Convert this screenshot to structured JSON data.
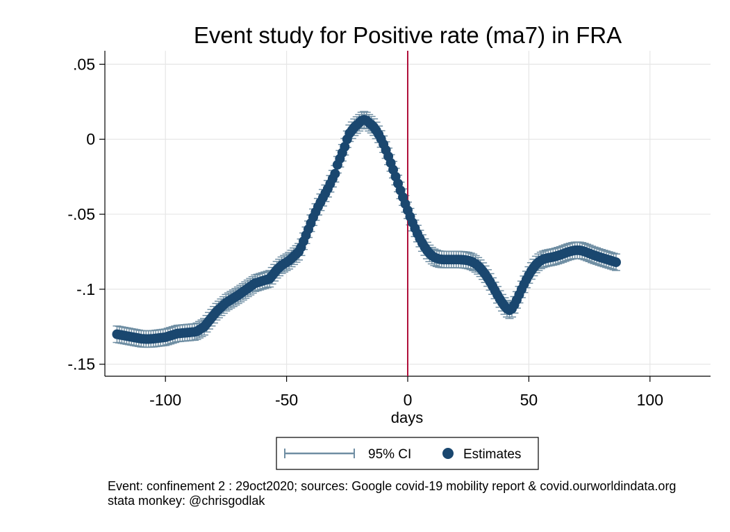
{
  "chart_data": {
    "type": "scatter",
    "title": "Event study for Positive rate (ma7) in FRA",
    "xlabel": "days",
    "ylabel": "",
    "xlim": [
      -125,
      125
    ],
    "ylim": [
      -0.158,
      0.059
    ],
    "x_ticks": [
      -100,
      -50,
      0,
      50,
      100
    ],
    "x_tick_labels": [
      "-100",
      "-50",
      "0",
      "50",
      "100"
    ],
    "y_ticks": [
      0.05,
      0,
      -0.05,
      -0.1,
      -0.15
    ],
    "y_tick_labels": [
      ".05",
      "0",
      "-.05",
      "-.1",
      "-.15"
    ],
    "grid": true,
    "event_line_x": 0,
    "event_line_color": "#b0103a",
    "ci_half_width": 0.0055,
    "legend": {
      "position": "bottom",
      "entries": [
        {
          "label": "95% CI",
          "kind": "ci",
          "color": "#6f8ea3"
        },
        {
          "label": "Estimates",
          "kind": "marker",
          "color": "#1a476f"
        }
      ]
    },
    "series": [
      {
        "name": "Estimates",
        "color": "#1a476f",
        "x_start": -120,
        "x_step": 1,
        "values": [
          -0.13,
          -0.1303,
          -0.1306,
          -0.1309,
          -0.1312,
          -0.1315,
          -0.1318,
          -0.1321,
          -0.1324,
          -0.1327,
          -0.133,
          -0.1331,
          -0.1332,
          -0.1332,
          -0.1331,
          -0.133,
          -0.1328,
          -0.1326,
          -0.1324,
          -0.1322,
          -0.132,
          -0.1315,
          -0.131,
          -0.1305,
          -0.13,
          -0.1295,
          -0.1294,
          -0.1292,
          -0.1291,
          -0.1289,
          -0.1288,
          -0.1286,
          -0.1285,
          -0.128,
          -0.127,
          -0.126,
          -0.125,
          -0.123,
          -0.121,
          -0.119,
          -0.117,
          -0.115,
          -0.1135,
          -0.112,
          -0.1105,
          -0.109,
          -0.108,
          -0.107,
          -0.106,
          -0.105,
          -0.104,
          -0.1029,
          -0.1017,
          -0.1006,
          -0.0994,
          -0.0983,
          -0.0971,
          -0.096,
          -0.0955,
          -0.095,
          -0.0945,
          -0.094,
          -0.0935,
          -0.093,
          -0.091,
          -0.089,
          -0.087,
          -0.0855,
          -0.084,
          -0.083,
          -0.082,
          -0.081,
          -0.0795,
          -0.078,
          -0.0765,
          -0.075,
          -0.072,
          -0.068,
          -0.064,
          -0.06,
          -0.056,
          -0.052,
          -0.0485,
          -0.045,
          -0.042,
          -0.039,
          -0.036,
          -0.033,
          -0.0297,
          -0.0263,
          -0.023,
          -0.017,
          -0.013,
          -0.009,
          -0.005,
          0,
          0.004,
          0.006,
          0.008,
          0.0095,
          0.011,
          0.0125,
          0.013,
          0.0125,
          0.011,
          0.0097,
          0.0081,
          0.0059,
          0.0033,
          0.0002,
          -0.0033,
          -0.0072,
          -0.0114,
          -0.0158,
          -0.0203,
          -0.0249,
          -0.0295,
          -0.0341,
          -0.0386,
          -0.0431,
          -0.0474,
          -0.0516,
          -0.0556,
          -0.0594,
          -0.0629,
          -0.0662,
          -0.0692,
          -0.0719,
          -0.0742,
          -0.0761,
          -0.0776,
          -0.0787,
          -0.0794,
          -0.0799,
          -0.0801,
          -0.0802,
          -0.0802,
          -0.0802,
          -0.0802,
          -0.0802,
          -0.0802,
          -0.0802,
          -0.0803,
          -0.0804,
          -0.0806,
          -0.0809,
          -0.0814,
          -0.0821,
          -0.0831,
          -0.0844,
          -0.086,
          -0.0879,
          -0.09,
          -0.0925,
          -0.0951,
          -0.0979,
          -0.1008,
          -0.1037,
          -0.1065,
          -0.109,
          -0.1112,
          -0.113,
          -0.114,
          -0.113,
          -0.1104,
          -0.1071,
          -0.1036,
          -0.1001,
          -0.0967,
          -0.0935,
          -0.0905,
          -0.0878,
          -0.0855,
          -0.0835,
          -0.082,
          -0.0808,
          -0.08,
          -0.0795,
          -0.0791,
          -0.0788,
          -0.0785,
          -0.0781,
          -0.0776,
          -0.0771,
          -0.0765,
          -0.0759,
          -0.0753,
          -0.0748,
          -0.0744,
          -0.0741,
          -0.074,
          -0.0741,
          -0.0744,
          -0.0749,
          -0.0755,
          -0.0761,
          -0.0768,
          -0.0774,
          -0.0779,
          -0.0785,
          -0.079,
          -0.0795,
          -0.08,
          -0.0805,
          -0.081,
          -0.0815,
          -0.082
        ]
      }
    ]
  },
  "notes": {
    "line1": "Event: confinement 2 : 29oct2020; sources: Google covid-19 mobility report & covid.ourworldindata.org",
    "line2": "stata monkey: @chrisgodlak"
  }
}
